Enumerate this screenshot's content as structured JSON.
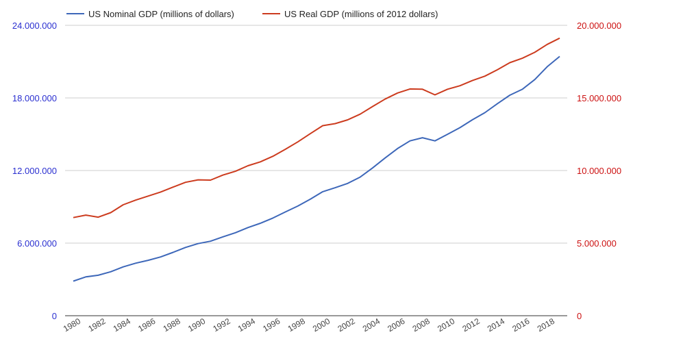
{
  "chart_data": {
    "type": "line",
    "title": "",
    "xlabel": "",
    "ylabel_left": "",
    "ylabel_right": "",
    "colors": {
      "nominal": "#3d67b9",
      "real": "#cc3b1e",
      "left_axis_text": "#2a2fd0",
      "right_axis_text": "#cc1010",
      "grid": "#cccccc",
      "x_axis_text": "#444444"
    },
    "x": [
      1980,
      1981,
      1982,
      1983,
      1984,
      1985,
      1986,
      1987,
      1988,
      1989,
      1990,
      1991,
      1992,
      1993,
      1994,
      1995,
      1996,
      1997,
      1998,
      1999,
      2000,
      2001,
      2002,
      2003,
      2004,
      2005,
      2006,
      2007,
      2008,
      2009,
      2010,
      2011,
      2012,
      2013,
      2014,
      2015,
      2016,
      2017,
      2018,
      2019
    ],
    "x_tick_labels": [
      "1980",
      "1982",
      "1984",
      "1986",
      "1988",
      "1990",
      "1992",
      "1994",
      "1996",
      "1998",
      "2000",
      "2002",
      "2004",
      "2006",
      "2008",
      "2010",
      "2012",
      "2014",
      "2016",
      "2018"
    ],
    "x_tick_values": [
      1980,
      1982,
      1984,
      1986,
      1988,
      1990,
      1992,
      1994,
      1996,
      1998,
      2000,
      2002,
      2004,
      2006,
      2008,
      2010,
      2012,
      2014,
      2016,
      2018
    ],
    "left_axis": {
      "ylim": [
        0,
        24000000
      ],
      "ticks": [
        0,
        6000000,
        12000000,
        18000000,
        24000000
      ],
      "tick_labels": [
        "0",
        "6.000.000",
        "12.000.000",
        "18.000.000",
        "24.000.000"
      ]
    },
    "right_axis": {
      "ylim": [
        0,
        20000000
      ],
      "ticks": [
        0,
        5000000,
        10000000,
        15000000,
        20000000
      ],
      "tick_labels": [
        "0",
        "5.000.000",
        "10.000.000",
        "15.000.000",
        "20.000.000"
      ]
    },
    "legend_position": "top-left",
    "series": [
      {
        "name": "US Nominal GDP (millions of dollars)",
        "axis": "left",
        "values": [
          2857000,
          3207000,
          3344000,
          3634000,
          4037000,
          4339000,
          4580000,
          4855000,
          5236000,
          5642000,
          5963000,
          6158000,
          6520000,
          6859000,
          7287000,
          7639000,
          8073000,
          8578000,
          9063000,
          9631000,
          10252000,
          10582000,
          10936000,
          11458000,
          12214000,
          13037000,
          13815000,
          14452000,
          14713000,
          14449000,
          14992000,
          15543000,
          16197000,
          16785000,
          17527000,
          18225000,
          18715000,
          19519000,
          20580000,
          21433000
        ]
      },
      {
        "name": "US Real GDP (millions of 2012 dollars)",
        "axis": "right",
        "values": [
          6760000,
          6930000,
          6790000,
          7100000,
          7640000,
          7960000,
          8240000,
          8520000,
          8860000,
          9190000,
          9360000,
          9340000,
          9690000,
          9950000,
          10330000,
          10600000,
          10980000,
          11460000,
          11970000,
          12540000,
          13090000,
          13230000,
          13490000,
          13880000,
          14410000,
          14920000,
          15340000,
          15620000,
          15600000,
          15210000,
          15600000,
          15840000,
          16200000,
          16500000,
          16940000,
          17430000,
          17730000,
          18140000,
          18690000,
          19120000
        ]
      }
    ]
  }
}
